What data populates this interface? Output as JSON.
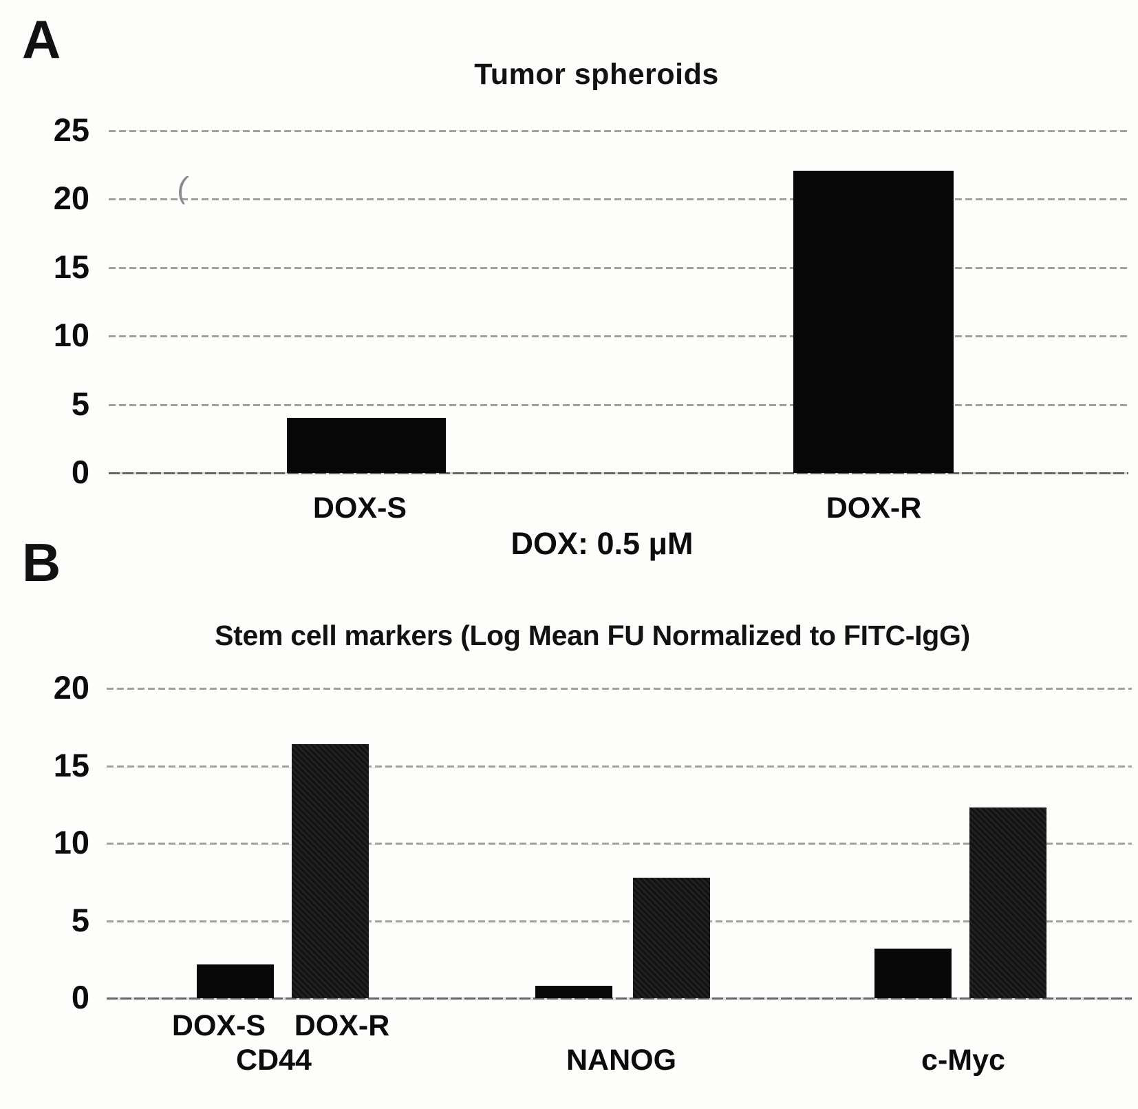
{
  "figure": {
    "background_color": "#fdfdfc",
    "text_color": "#0e0e0e",
    "gridline_color": "#8f8f8f",
    "bar_color": "#080808",
    "artifact_glyph": "("
  },
  "chart_data": [
    {
      "type": "bar",
      "panel_label": "A",
      "title": "Tumor spheroids",
      "xlabel": "DOX: 0.5 μM",
      "ylabel": "",
      "categories": [
        "DOX-S",
        "DOX-R"
      ],
      "values": [
        4.0,
        22.1
      ],
      "ylim": [
        0,
        25
      ],
      "yticks": [
        25,
        20,
        15,
        10,
        5,
        0
      ],
      "grid": "dotted horizontal gridlines at every tick",
      "legend": "none",
      "bar_color": "#080808"
    },
    {
      "type": "bar",
      "panel_label": "B",
      "title": "Stem cell markers (Log Mean FU Normalized to FITC-IgG)",
      "xlabel": "",
      "ylabel": "",
      "categories": [
        "CD44",
        "NANOG",
        "c-Myc"
      ],
      "series": [
        {
          "name": "DOX-S",
          "values": [
            2.2,
            0.8,
            3.2
          ]
        },
        {
          "name": "DOX-R",
          "values": [
            16.4,
            7.8,
            12.3
          ]
        }
      ],
      "ylim": [
        0,
        20
      ],
      "yticks": [
        20,
        15,
        10,
        5,
        0
      ],
      "grid": "dotted horizontal gridlines at every tick",
      "legend": "series names written under first group only",
      "bar_color": "#0a0a0a"
    }
  ]
}
